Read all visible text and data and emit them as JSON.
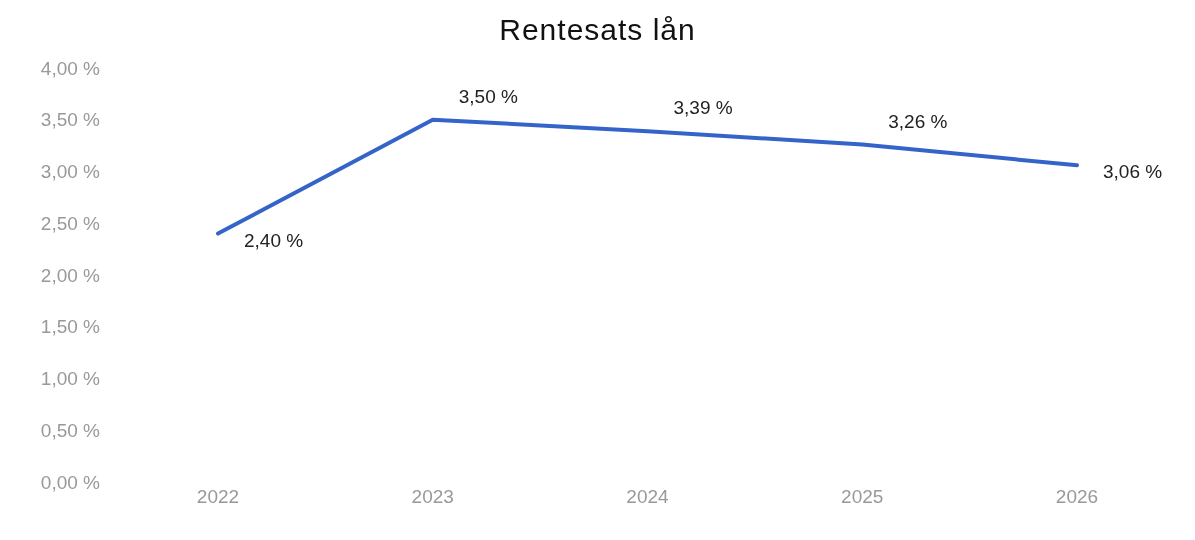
{
  "chart_data": {
    "type": "line",
    "title": "Rentesats lån",
    "categories": [
      "2022",
      "2023",
      "2024",
      "2025",
      "2026"
    ],
    "series": [
      {
        "color": "#3564c8",
        "values": [
          2.4,
          3.5,
          3.39,
          3.26,
          3.06
        ],
        "value_labels": [
          "2,40 %",
          "3,50 %",
          "3,39 %",
          "3,26 %",
          "3,06 %"
        ]
      }
    ],
    "ylim": [
      0,
      4
    ],
    "yticks": [
      {
        "value": 0,
        "label": "0,00 %"
      },
      {
        "value": 0.5,
        "label": "0,50 %"
      },
      {
        "value": 1,
        "label": "1,00 %"
      },
      {
        "value": 1.5,
        "label": "1,50 %"
      },
      {
        "value": 2,
        "label": "2,00 %"
      },
      {
        "value": 2.5,
        "label": "2,50 %"
      },
      {
        "value": 3,
        "label": "3,00 %"
      },
      {
        "value": 3.5,
        "label": "3,50 %"
      },
      {
        "value": 4,
        "label": "4,00 %"
      }
    ],
    "grid": false,
    "legend": false,
    "marker": "none",
    "line_style": "solid"
  }
}
